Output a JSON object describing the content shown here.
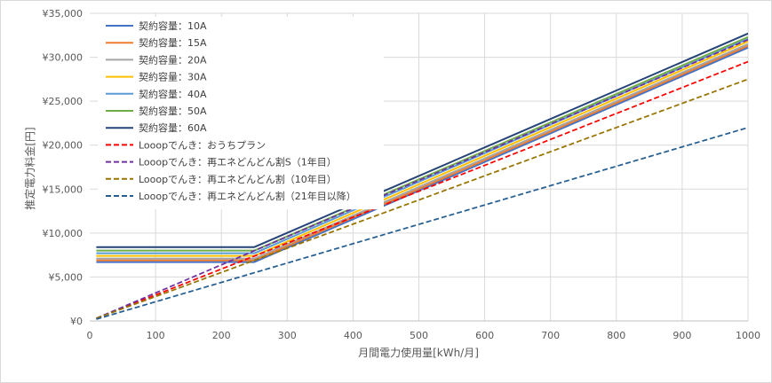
{
  "chart_data": {
    "type": "line",
    "title": "",
    "xlabel": "月間電力使用量[kWh/月]",
    "ylabel": "推定電力料金[円]",
    "xlim": [
      0,
      1000
    ],
    "ylim": [
      0,
      35000
    ],
    "x_ticks": [
      0,
      100,
      200,
      300,
      400,
      500,
      600,
      700,
      800,
      900,
      1000
    ],
    "y_ticks": [
      0,
      5000,
      10000,
      15000,
      20000,
      25000,
      30000,
      35000
    ],
    "y_tick_labels": [
      "¥0",
      "¥5,000",
      "¥10,000",
      "¥15,000",
      "¥20,000",
      "¥25,000",
      "¥30,000",
      "¥35,000"
    ],
    "grid": true,
    "legend_position": "top-left",
    "series": [
      {
        "name": "契約容量：10A",
        "color": "#4472c4",
        "style": "solid",
        "x": [
          10,
          250,
          1000
        ],
        "y": [
          6700,
          6700,
          31100
        ]
      },
      {
        "name": "契約容量：15A",
        "color": "#ed7d31",
        "style": "solid",
        "x": [
          10,
          250,
          1000
        ],
        "y": [
          6900,
          6900,
          31300
        ]
      },
      {
        "name": "契約容量：20A",
        "color": "#a5a5a5",
        "style": "solid",
        "x": [
          10,
          250,
          1000
        ],
        "y": [
          7100,
          7100,
          31500
        ]
      },
      {
        "name": "契約容量：30A",
        "color": "#ffc000",
        "style": "solid",
        "x": [
          10,
          250,
          1000
        ],
        "y": [
          7400,
          7400,
          31800
        ]
      },
      {
        "name": "契約容量：40A",
        "color": "#5b9bd5",
        "style": "solid",
        "x": [
          10,
          250,
          1000
        ],
        "y": [
          7700,
          7700,
          32100
        ]
      },
      {
        "name": "契約容量：50A",
        "color": "#70ad47",
        "style": "solid",
        "x": [
          10,
          250,
          1000
        ],
        "y": [
          8000,
          8000,
          32300
        ]
      },
      {
        "name": "契約容量：60A",
        "color": "#264478",
        "style": "solid",
        "x": [
          10,
          250,
          1000
        ],
        "y": [
          8400,
          8400,
          32700
        ]
      },
      {
        "name": "Looopでんき：おうちプラン",
        "color": "#ff0000",
        "style": "dashed",
        "x": [
          10,
          1000
        ],
        "y": [
          300,
          29500
        ]
      },
      {
        "name": "Looopでんき：再エネどんどん割S（1年目）",
        "color": "#7030a0",
        "style": "dashed",
        "x": [
          10,
          1000
        ],
        "y": [
          300,
          32000
        ]
      },
      {
        "name": "Looopでんき：再エネどんどん割（10年目）",
        "color": "#997300",
        "style": "dashed",
        "x": [
          10,
          1000
        ],
        "y": [
          300,
          27500
        ]
      },
      {
        "name": "Looopでんき：再エネどんどん割（21年目以降）",
        "color": "#255e91",
        "style": "dashed",
        "x": [
          10,
          1000
        ],
        "y": [
          200,
          22000
        ]
      }
    ]
  }
}
